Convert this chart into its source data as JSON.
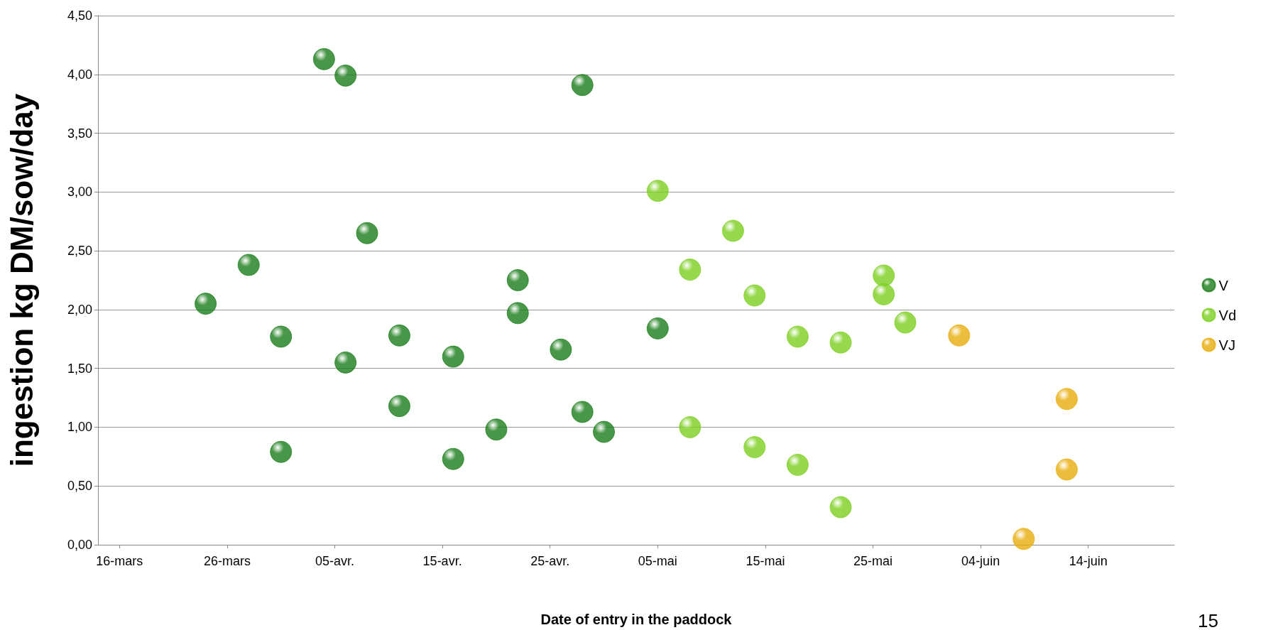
{
  "chart_data": {
    "type": "scatter",
    "xlabel": "Date of entry in the paddock",
    "ylabel": "ingestion kg DM/sow/day",
    "xlim": [
      "--03-14",
      "--06-22"
    ],
    "xticks": [
      {
        "value": "--03-16",
        "label": "16-mars"
      },
      {
        "value": "--03-26",
        "label": "26-mars"
      },
      {
        "value": "--04-05",
        "label": "05-avr."
      },
      {
        "value": "--04-15",
        "label": "15-avr."
      },
      {
        "value": "--04-25",
        "label": "25-avr."
      },
      {
        "value": "--05-05",
        "label": "05-mai"
      },
      {
        "value": "--05-15",
        "label": "15-mai"
      },
      {
        "value": "--05-25",
        "label": "25-mai"
      },
      {
        "value": "--06-04",
        "label": "04-juin"
      },
      {
        "value": "--06-14",
        "label": "14-juin"
      }
    ],
    "ylim": [
      0,
      4.5
    ],
    "yticks": [
      {
        "value": 0,
        "label": "0,00"
      },
      {
        "value": 0.5,
        "label": "0,50"
      },
      {
        "value": 1,
        "label": "1,00"
      },
      {
        "value": 1.5,
        "label": "1,50"
      },
      {
        "value": 2,
        "label": "2,00"
      },
      {
        "value": 2.5,
        "label": "2,50"
      },
      {
        "value": 3,
        "label": "3,00"
      },
      {
        "value": 3.5,
        "label": "3,50"
      },
      {
        "value": 4,
        "label": "4,00"
      },
      {
        "value": 4.5,
        "label": "4,50"
      }
    ],
    "grid": "y",
    "legend": "right",
    "marker": "circle",
    "series": [
      {
        "name": "V",
        "color": "#1b7d1b",
        "x": [
          "--03-24",
          "--03-28",
          "--03-31",
          "--03-31",
          "--04-04",
          "--04-06",
          "--04-06",
          "--04-08",
          "--04-11",
          "--04-11",
          "--04-16",
          "--04-16",
          "--04-20",
          "--04-22",
          "--04-22",
          "--04-26",
          "--04-28",
          "--04-28",
          "--04-30",
          "--05-05"
        ],
        "values": [
          2.05,
          2.38,
          1.77,
          0.79,
          4.13,
          3.99,
          1.55,
          2.65,
          1.78,
          1.18,
          1.6,
          0.73,
          0.98,
          2.25,
          1.97,
          1.66,
          3.91,
          1.13,
          0.96,
          1.84
        ]
      },
      {
        "name": "Vd",
        "color": "#7ccf1f",
        "x": [
          "--05-05",
          "--05-08",
          "--05-08",
          "--05-12",
          "--05-14",
          "--05-14",
          "--05-18",
          "--05-18",
          "--05-22",
          "--05-22",
          "--05-26",
          "--05-26",
          "--05-28"
        ],
        "values": [
          3.01,
          2.34,
          1.0,
          2.67,
          2.12,
          0.83,
          1.77,
          0.68,
          1.72,
          0.32,
          2.29,
          2.13,
          1.89
        ]
      },
      {
        "name": "VJ",
        "color": "#e8ad0c",
        "x": [
          "--06-02",
          "--06-08",
          "--06-12",
          "--06-12"
        ],
        "values": [
          1.78,
          0.05,
          1.24,
          0.64
        ]
      }
    ],
    "annotations": [
      "15"
    ]
  }
}
